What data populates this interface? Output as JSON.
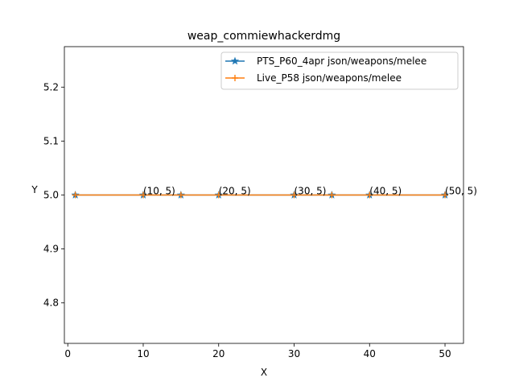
{
  "chart_data": {
    "type": "line",
    "title": "weap_commiewhackerdmg",
    "xlabel": "X",
    "ylabel": "Y",
    "xlim": [
      -0.45,
      52.45
    ],
    "ylim": [
      4.725,
      5.275
    ],
    "xticks": [
      0,
      10,
      20,
      30,
      40,
      50
    ],
    "yticks": [
      4.8,
      4.9,
      5.0,
      5.1,
      5.2
    ],
    "ytick_labels": [
      "4.8",
      "4.9",
      "5.0",
      "5.1",
      "5.2"
    ],
    "legend_position": "top-right",
    "series": [
      {
        "name": "PTS_P60_4apr json/weapons/melee",
        "color": "#1f77b4",
        "marker": "star",
        "x": [
          1,
          10,
          15,
          20,
          30,
          35,
          40,
          50
        ],
        "y": [
          5,
          5,
          5,
          5,
          5,
          5,
          5,
          5
        ]
      },
      {
        "name": "Live_P58 json/weapons/melee",
        "color": "#ff7f0e",
        "marker": "plus",
        "x": [
          1,
          10,
          15,
          20,
          30,
          35,
          40,
          50
        ],
        "y": [
          5,
          5,
          5,
          5,
          5,
          5,
          5,
          5
        ]
      }
    ],
    "annotations": [
      {
        "text": "(10, 5)",
        "x": 10,
        "y": 5
      },
      {
        "text": "(20, 5)",
        "x": 20,
        "y": 5
      },
      {
        "text": "(30, 5)",
        "x": 30,
        "y": 5
      },
      {
        "text": "(40, 5)",
        "x": 40,
        "y": 5
      },
      {
        "text": "(50, 5)",
        "x": 50,
        "y": 5
      }
    ]
  }
}
